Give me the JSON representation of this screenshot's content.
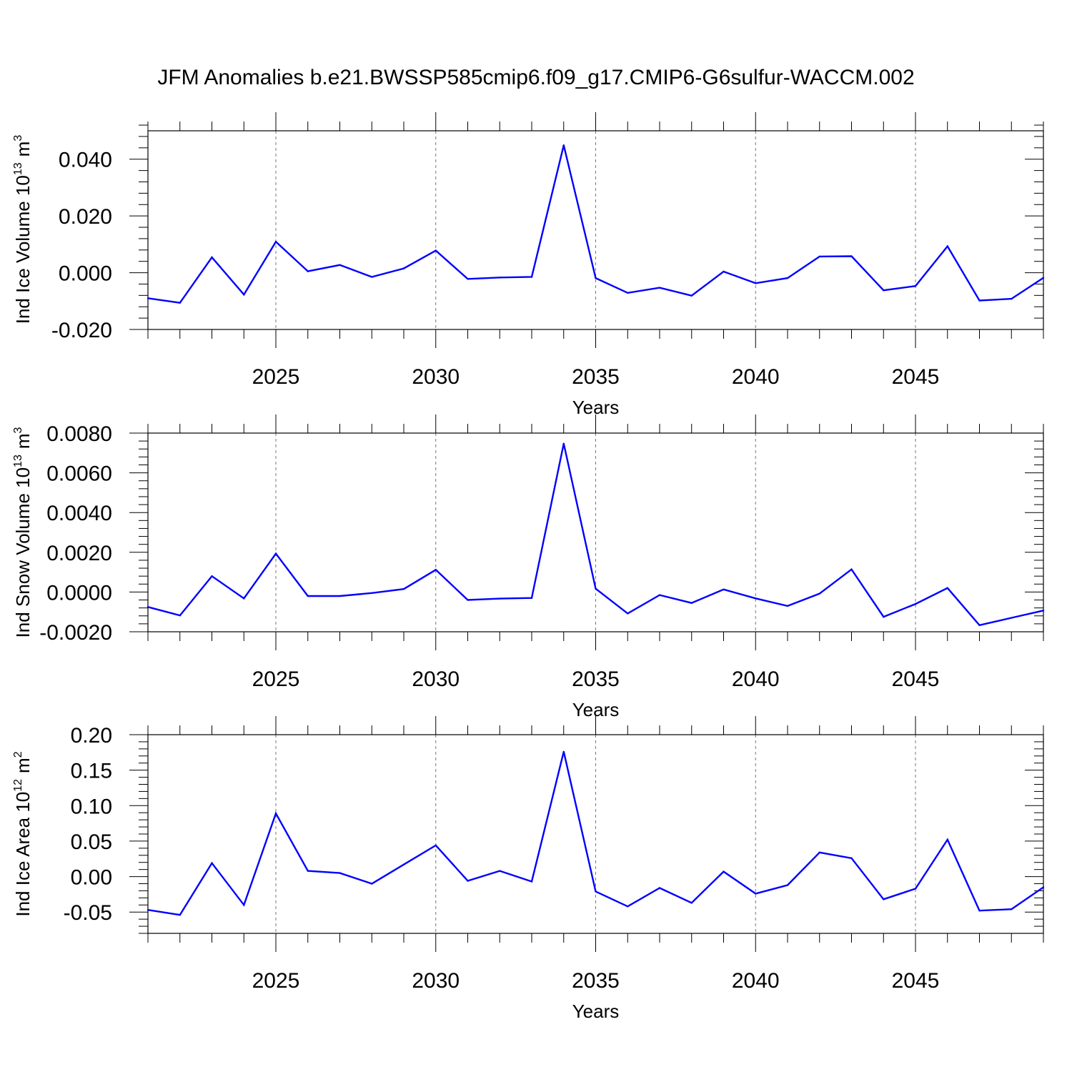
{
  "title": "JFM Anomalies b.e21.BWSSP585cmip6.f09_g17.CMIP6-G6sulfur-WACCM.002",
  "line_color": "#0000ff",
  "chart_data": [
    {
      "type": "line",
      "ylabel_main": "Ind Ice Volume 10",
      "ylabel_exp": "13",
      "ylabel_unit": "m",
      "ylabel_unit_exp": "3",
      "xlabel": "Years",
      "xlim": [
        2021,
        2049
      ],
      "ylim": [
        -0.02,
        0.05
      ],
      "yticks": [
        -0.02,
        0.0,
        0.02,
        0.04
      ],
      "ytick_labels": [
        "-0.020",
        "0.000",
        "0.020",
        "0.040"
      ],
      "xticks": [
        2025,
        2030,
        2035,
        2040,
        2045
      ],
      "xtick_labels": [
        "2025",
        "2030",
        "2035",
        "2040",
        "2045"
      ],
      "x": [
        2021,
        2022,
        2023,
        2024,
        2025,
        2026,
        2027,
        2028,
        2029,
        2030,
        2031,
        2032,
        2033,
        2034,
        2035,
        2036,
        2037,
        2038,
        2039,
        2040,
        2041,
        2042,
        2043,
        2044,
        2045,
        2046,
        2047,
        2048,
        2049
      ],
      "values": [
        -0.009,
        -0.0106,
        0.0054,
        -0.0077,
        0.0109,
        0.0005,
        0.0027,
        -0.0015,
        0.0015,
        0.0078,
        -0.0022,
        -0.0017,
        -0.0015,
        0.0449,
        -0.0019,
        -0.0071,
        -0.0053,
        -0.0081,
        0.0004,
        -0.0037,
        -0.0019,
        0.0057,
        0.0058,
        -0.0062,
        -0.0047,
        0.0093,
        -0.0098,
        -0.0092,
        -0.0018
      ]
    },
    {
      "type": "line",
      "ylabel_main": "Ind Snow Volume 10",
      "ylabel_exp": "13",
      "ylabel_unit": "m",
      "ylabel_unit_exp": "3",
      "xlabel": "Years",
      "xlim": [
        2021,
        2049
      ],
      "ylim": [
        -0.002,
        0.008
      ],
      "yticks": [
        -0.002,
        0.0,
        0.002,
        0.004,
        0.006,
        0.008
      ],
      "ytick_labels": [
        "-0.0020",
        "0.0000",
        "0.0020",
        "0.0040",
        "0.0060",
        "0.0080"
      ],
      "xticks": [
        2025,
        2030,
        2035,
        2040,
        2045
      ],
      "xtick_labels": [
        "2025",
        "2030",
        "2035",
        "2040",
        "2045"
      ],
      "x": [
        2021,
        2022,
        2023,
        2024,
        2025,
        2026,
        2027,
        2028,
        2029,
        2030,
        2031,
        2032,
        2033,
        2034,
        2035,
        2036,
        2037,
        2038,
        2039,
        2040,
        2041,
        2042,
        2043,
        2044,
        2045,
        2046,
        2047,
        2048,
        2049
      ],
      "values": [
        -0.00075,
        -0.00118,
        0.0008,
        -0.00032,
        0.00193,
        -0.0002,
        -0.0002,
        -5e-05,
        0.00015,
        0.00112,
        -0.0004,
        -0.00033,
        -0.0003,
        0.00747,
        0.00017,
        -0.00108,
        -0.00015,
        -0.00055,
        0.00013,
        -0.00032,
        -0.0007,
        -8e-05,
        0.00114,
        -0.00125,
        -0.0006,
        0.0002,
        -0.00167,
        -0.0013,
        -0.00093
      ]
    },
    {
      "type": "line",
      "ylabel_main": "Ind Ice Area 10",
      "ylabel_exp": "12",
      "ylabel_unit": "m",
      "ylabel_unit_exp": "2",
      "xlabel": "Years",
      "xlim": [
        2021,
        2049
      ],
      "ylim": [
        -0.08,
        0.2
      ],
      "yticks": [
        -0.05,
        0.0,
        0.05,
        0.1,
        0.15,
        0.2
      ],
      "ytick_labels": [
        "-0.05",
        "0.00",
        "0.05",
        "0.10",
        "0.15",
        "0.20"
      ],
      "xticks": [
        2025,
        2030,
        2035,
        2040,
        2045
      ],
      "xtick_labels": [
        "2025",
        "2030",
        "2035",
        "2040",
        "2045"
      ],
      "x": [
        2021,
        2022,
        2023,
        2024,
        2025,
        2026,
        2027,
        2028,
        2029,
        2030,
        2031,
        2032,
        2033,
        2034,
        2035,
        2036,
        2037,
        2038,
        2039,
        2040,
        2041,
        2042,
        2043,
        2044,
        2045,
        2046,
        2047,
        2048,
        2049
      ],
      "values": [
        -0.047,
        -0.054,
        0.019,
        -0.04,
        0.089,
        0.008,
        0.005,
        -0.01,
        0.017,
        0.044,
        -0.006,
        0.008,
        -0.007,
        0.176,
        -0.021,
        -0.042,
        -0.016,
        -0.037,
        0.007,
        -0.024,
        -0.012,
        0.034,
        0.026,
        -0.032,
        -0.017,
        0.052,
        -0.048,
        -0.046,
        -0.015
      ]
    }
  ]
}
